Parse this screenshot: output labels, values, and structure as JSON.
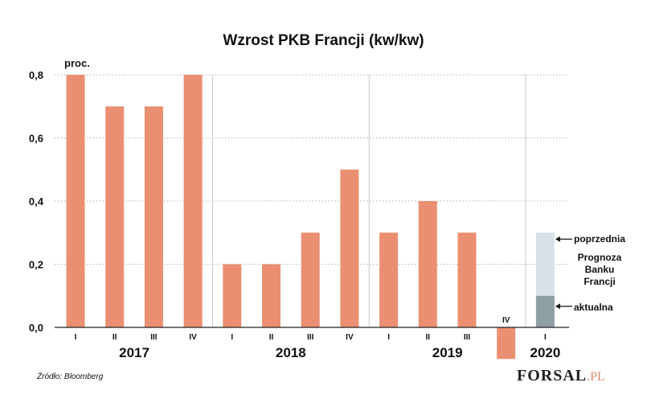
{
  "chart_data": {
    "type": "bar",
    "title": "Wzrost PKB Francji (kw/kw)",
    "ylabel": "proc.",
    "ylim": [
      0,
      0.8
    ],
    "yticks": [
      "0,0",
      "0,2",
      "0,4",
      "0,6",
      "0,8"
    ],
    "years": [
      {
        "label": "2017",
        "quarters": [
          "I",
          "II",
          "III",
          "IV"
        ],
        "values": [
          0.8,
          0.7,
          0.7,
          0.8
        ]
      },
      {
        "label": "2018",
        "quarters": [
          "I",
          "II",
          "III",
          "IV"
        ],
        "values": [
          0.2,
          0.2,
          0.3,
          0.5
        ]
      },
      {
        "label": "2019",
        "quarters": [
          "I",
          "II",
          "III",
          "IV"
        ],
        "values": [
          0.3,
          0.4,
          0.3,
          -0.1
        ]
      },
      {
        "label": "2020",
        "quarters": [
          "I"
        ],
        "values": [
          0.1
        ]
      }
    ],
    "forecast": {
      "quarter": "2020 I",
      "previous_value": 0.3,
      "current_value": 0.1,
      "previous_label": "poprzednia",
      "current_label": "aktualna",
      "group_label": [
        "Prognoza",
        "Banku",
        "Francji"
      ]
    },
    "colors": {
      "bar": "#ea8f71",
      "forecast_previous": "#d9e1e6",
      "forecast_current": "#8e9fa4",
      "grid": "#b0b0b0"
    },
    "legend": "none",
    "grid": true
  },
  "source": "Źródło: Bloomberg",
  "logo": {
    "main": "FORSAL",
    "suffix": ".PL"
  }
}
